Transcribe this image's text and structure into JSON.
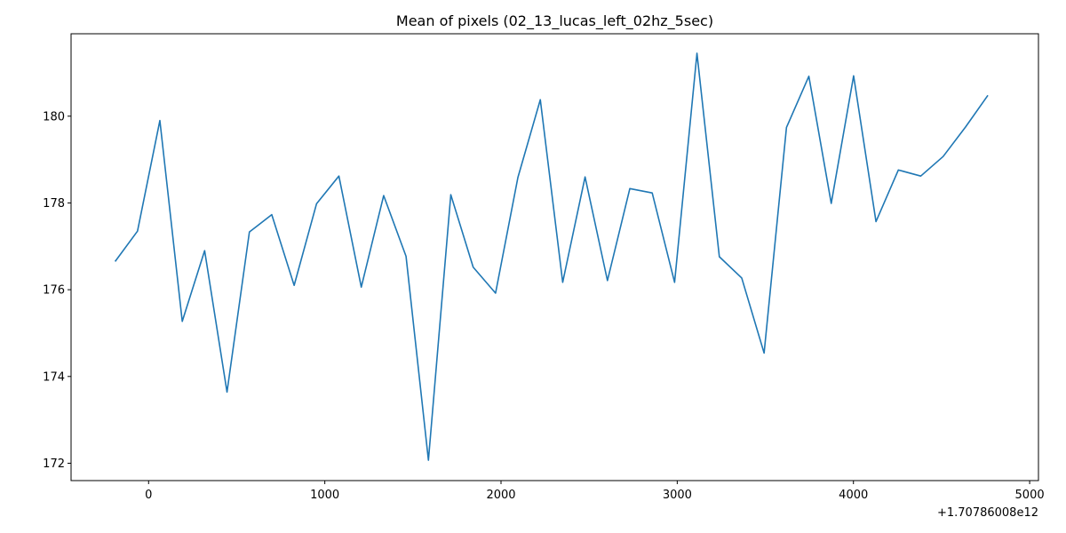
{
  "chart_data": {
    "type": "line",
    "title": "Mean of pixels (02_13_lucas_left_02hz_5sec)",
    "xlabel": "",
    "ylabel": "",
    "x_offset_label": "+1.70786008e12",
    "xlim": [
      -440,
      5050
    ],
    "ylim": [
      171.6,
      181.9
    ],
    "x_ticks": [
      0,
      1000,
      2000,
      3000,
      4000,
      5000
    ],
    "x_tick_labels": [
      "0",
      "1000",
      "2000",
      "3000",
      "4000",
      "5000"
    ],
    "y_ticks": [
      172,
      174,
      176,
      178,
      180
    ],
    "y_tick_labels": [
      "172",
      "174",
      "176",
      "178",
      "180"
    ],
    "grid": false,
    "line_color": "#1f77b4",
    "series": [
      {
        "x": [
          -190,
          -63,
          64,
          191,
          318,
          445,
          572,
          699,
          826,
          953,
          1080,
          1207,
          1334,
          1461,
          1588,
          1715,
          1842,
          1969,
          2096,
          2223,
          2350,
          2477,
          2604,
          2731,
          2858,
          2985,
          3112,
          3239,
          3366,
          3493,
          3620,
          3747,
          3874,
          4001,
          4128,
          4255,
          4382,
          4509,
          4636,
          4763
        ],
        "values": [
          176.65,
          177.35,
          179.9,
          175.27,
          176.9,
          173.64,
          177.33,
          177.73,
          176.1,
          177.98,
          178.62,
          176.06,
          178.17,
          176.77,
          172.07,
          178.19,
          176.52,
          175.92,
          178.59,
          180.38,
          176.17,
          178.6,
          176.21,
          178.33,
          178.23,
          176.17,
          181.45,
          176.76,
          176.27,
          174.54,
          179.74,
          180.92,
          177.99,
          180.93,
          177.57,
          178.76,
          178.62,
          179.07,
          179.75,
          180.48
        ]
      }
    ]
  }
}
